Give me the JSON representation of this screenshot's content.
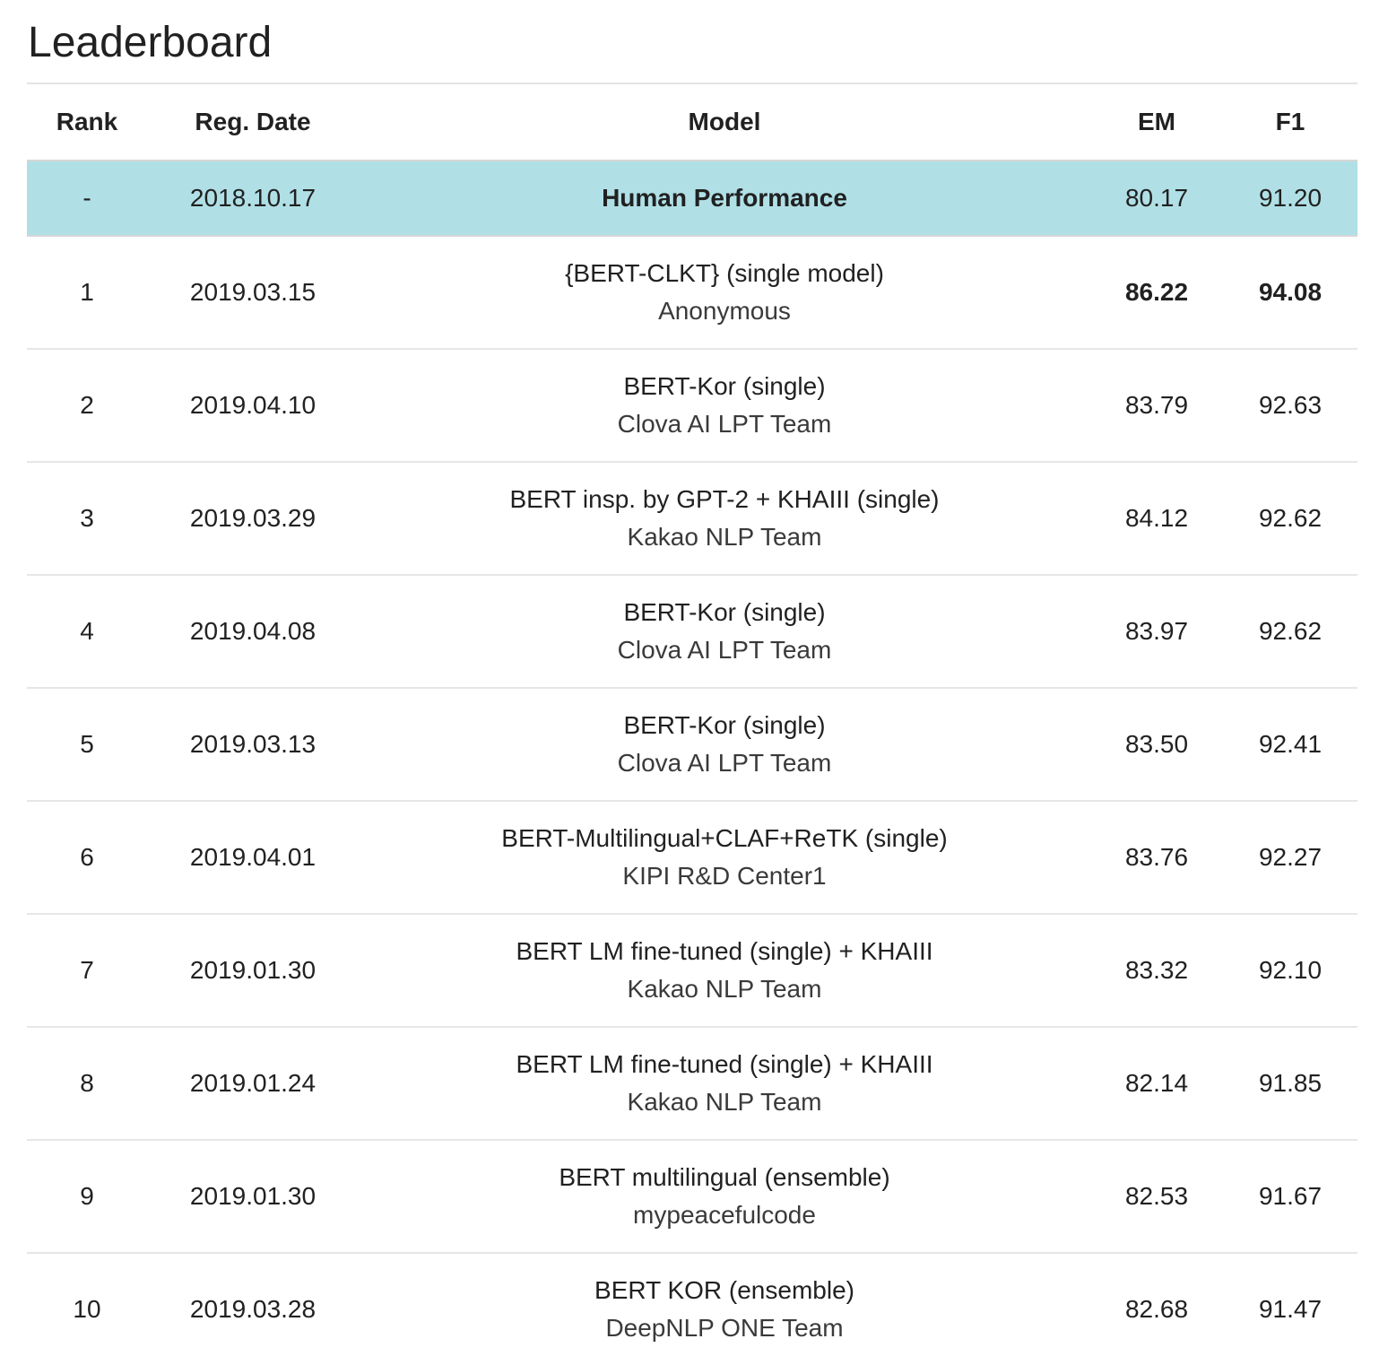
{
  "page": {
    "title": "Leaderboard"
  },
  "table": {
    "headers": {
      "rank": "Rank",
      "date": "Reg. Date",
      "model": "Model",
      "em": "EM",
      "f1": "F1"
    },
    "human": {
      "rank": "-",
      "date": "2018.10.17",
      "model": "Human Performance",
      "em": "80.17",
      "f1": "91.20"
    },
    "rows": [
      {
        "rank": "1",
        "date": "2019.03.15",
        "model": "{BERT-CLKT} (single model)",
        "team": "Anonymous",
        "em": "86.22",
        "f1": "94.08",
        "best": true
      },
      {
        "rank": "2",
        "date": "2019.04.10",
        "model": "BERT-Kor (single)",
        "team": "Clova AI LPT Team",
        "em": "83.79",
        "f1": "92.63"
      },
      {
        "rank": "3",
        "date": "2019.03.29",
        "model": "BERT insp. by GPT-2 + KHAIII (single)",
        "team": "Kakao NLP Team",
        "em": "84.12",
        "f1": "92.62"
      },
      {
        "rank": "4",
        "date": "2019.04.08",
        "model": "BERT-Kor (single)",
        "team": "Clova AI LPT Team",
        "em": "83.97",
        "f1": "92.62"
      },
      {
        "rank": "5",
        "date": "2019.03.13",
        "model": "BERT-Kor (single)",
        "team": "Clova AI LPT Team",
        "em": "83.50",
        "f1": "92.41"
      },
      {
        "rank": "6",
        "date": "2019.04.01",
        "model": "BERT-Multilingual+CLAF+ReTK (single)",
        "team": "KIPI R&D Center1",
        "em": "83.76",
        "f1": "92.27"
      },
      {
        "rank": "7",
        "date": "2019.01.30",
        "model": "BERT LM fine-tuned (single) + KHAIII",
        "team": "Kakao NLP Team",
        "em": "83.32",
        "f1": "92.10"
      },
      {
        "rank": "8",
        "date": "2019.01.24",
        "model": "BERT LM fine-tuned (single) + KHAIII",
        "team": "Kakao NLP Team",
        "em": "82.14",
        "f1": "91.85"
      },
      {
        "rank": "9",
        "date": "2019.01.30",
        "model": "BERT multilingual (ensemble)",
        "team": "mypeacefulcode",
        "em": "82.53",
        "f1": "91.67"
      },
      {
        "rank": "10",
        "date": "2019.03.28",
        "model": "BERT KOR (ensemble)",
        "team": "DeepNLP ONE Team",
        "em": "82.68",
        "f1": "91.47"
      }
    ]
  },
  "colors": {
    "human_row_bg": "#b0e0e6",
    "text": "#212121",
    "divider": "#e6e6e6"
  }
}
